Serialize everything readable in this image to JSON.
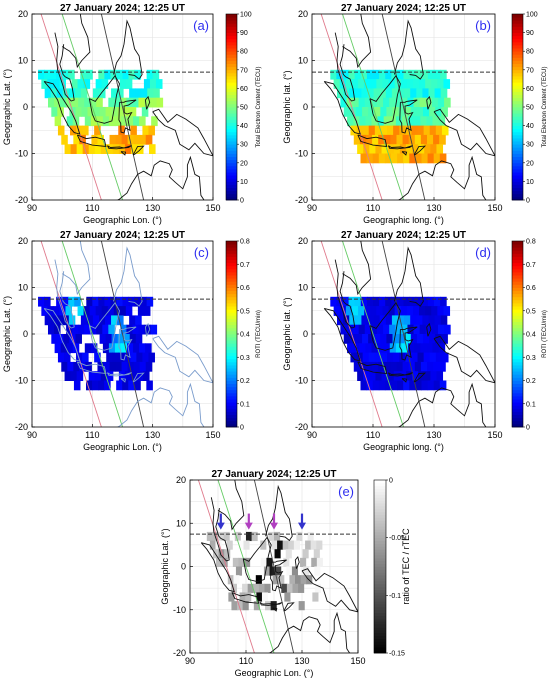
{
  "chart_data": [
    {
      "panel": "a",
      "type": "heatmap",
      "layer": "total-electron-content",
      "title": "27 January 2024; 12:25 UT",
      "label": "(a)",
      "xlabel": "Geographic Lon. (°)",
      "ylabel": "Geographic Lat. (°)",
      "xlim": [
        90,
        150
      ],
      "ylim": [
        -20,
        20
      ],
      "xticks": [
        "90",
        "110",
        "130",
        "150"
      ],
      "yticks": [
        "-20",
        "-10",
        "0",
        "10",
        "20"
      ],
      "colorbar": {
        "label": "Total Electron Content (TECU)",
        "ticks": [
          "0",
          "10",
          "20",
          "30",
          "40",
          "50",
          "60",
          "70",
          "80",
          "90",
          "100"
        ],
        "range": [
          0,
          100
        ],
        "colormap": "jet"
      },
      "coverage": {
        "lon": [
          92,
          132
        ],
        "lat": [
          -10,
          8
        ]
      },
      "values_summary": {
        "north_band_TECU": 35,
        "equatorial_TECU": 50,
        "south_band_TECU": 70
      }
    },
    {
      "panel": "b",
      "type": "heatmap",
      "layer": "total-electron-content",
      "title": "27 January 2024; 12:25 UT",
      "label": "(b)",
      "xlabel": "Geographic long. (°)",
      "ylabel": "Geographic lat. (°)",
      "xlim": [
        90,
        150
      ],
      "ylim": [
        -20,
        20
      ],
      "xticks": [
        "90",
        "110",
        "130",
        "150"
      ],
      "yticks": [
        "-20",
        "-10",
        "0",
        "10",
        "20"
      ],
      "colorbar": {
        "label": "Total Electron Content (TECU)",
        "ticks": [
          "0",
          "10",
          "20",
          "30",
          "40",
          "50",
          "60",
          "70",
          "80",
          "90",
          "100"
        ],
        "range": [
          0,
          100
        ],
        "colormap": "jet"
      },
      "coverage": {
        "lon": [
          96,
          134
        ],
        "lat": [
          -12,
          8
        ]
      },
      "values_summary": {
        "north_band_TECU": 35,
        "equatorial_TECU": 45,
        "south_band_TECU": 70
      }
    },
    {
      "panel": "c",
      "type": "heatmap",
      "layer": "roti",
      "title": "27 January 2024; 12:25 UT",
      "label": "(c)",
      "xlabel": "Geographic Lon. (°)",
      "ylabel": "Geographic Lat. (°)",
      "xlim": [
        90,
        150
      ],
      "ylim": [
        -20,
        20
      ],
      "xticks": [
        "90",
        "110",
        "130",
        "150"
      ],
      "yticks": [
        "-20",
        "-10",
        "0",
        "10",
        "20"
      ],
      "colorbar": {
        "label": "ROTI (TECU/min)",
        "ticks": [
          "0",
          "0.1",
          "0.2",
          "0.3",
          "0.4",
          "0.5",
          "0.6",
          "0.7",
          "0.8"
        ],
        "range": [
          0,
          0.8
        ],
        "colormap": "jet"
      },
      "coverage": {
        "lon": [
          92,
          130
        ],
        "lat": [
          -12,
          8
        ]
      },
      "values_summary": {
        "background": 0.05,
        "max": 0.3
      }
    },
    {
      "panel": "d",
      "type": "heatmap",
      "layer": "roti",
      "title": "27 January 2024; 12:25 UT",
      "label": "(d)",
      "xlabel": "Geographic long. (°)",
      "ylabel": "Geographic lat. (°)",
      "xlim": [
        90,
        150
      ],
      "ylim": [
        -20,
        20
      ],
      "xticks": [
        "90",
        "110",
        "130",
        "150"
      ],
      "yticks": [
        "-20",
        "-10",
        "0",
        "10",
        "20"
      ],
      "colorbar": {
        "label": "ROTI (TECU/min)",
        "ticks": [
          "0",
          "0.1",
          "0.2",
          "0.3",
          "0.4",
          "0.5",
          "0.6",
          "0.7",
          "0.8"
        ],
        "range": [
          0,
          0.8
        ],
        "colormap": "jet"
      },
      "coverage": {
        "lon": [
          96,
          134
        ],
        "lat": [
          -12,
          8
        ]
      },
      "values_summary": {
        "background": 0.05,
        "max": 0.3
      }
    },
    {
      "panel": "e",
      "type": "heatmap",
      "layer": "tec-ratio",
      "title": "27 January 2024; 12:25 UT",
      "label": "(e)",
      "xlabel": "Geographic Lon. (°)",
      "ylabel": "Geographic Lat. (°)",
      "xlim": [
        90,
        150
      ],
      "ylim": [
        -20,
        20
      ],
      "xticks": [
        "90",
        "110",
        "130",
        "150"
      ],
      "yticks": [
        "-20",
        "-10",
        "0",
        "10",
        "20"
      ],
      "colorbar": {
        "label": "ratio of TEC / rTEC",
        "ticks": [
          "-0.15",
          "-0.1",
          "-0.05",
          "0"
        ],
        "range": [
          -0.15,
          0
        ],
        "colormap": "gray"
      },
      "coverage": {
        "lon": [
          96,
          136
        ],
        "lat": [
          -10,
          8
        ]
      },
      "arrows": [
        {
          "lon": 101,
          "lat": 9,
          "color": "#3333cc"
        },
        {
          "lon": 111,
          "lat": 9,
          "color": "#b040c0"
        },
        {
          "lon": 120,
          "lat": 9,
          "color": "#b040c0"
        },
        {
          "lon": 130,
          "lat": 9,
          "color": "#3333cc"
        }
      ]
    }
  ],
  "colors": {
    "magnetic_equator": "#333333",
    "coast": "#111111",
    "pink_line": "#e07a8c",
    "green_line": "#66cc66",
    "dark_line": "#444444",
    "label": "#2d2df0"
  }
}
